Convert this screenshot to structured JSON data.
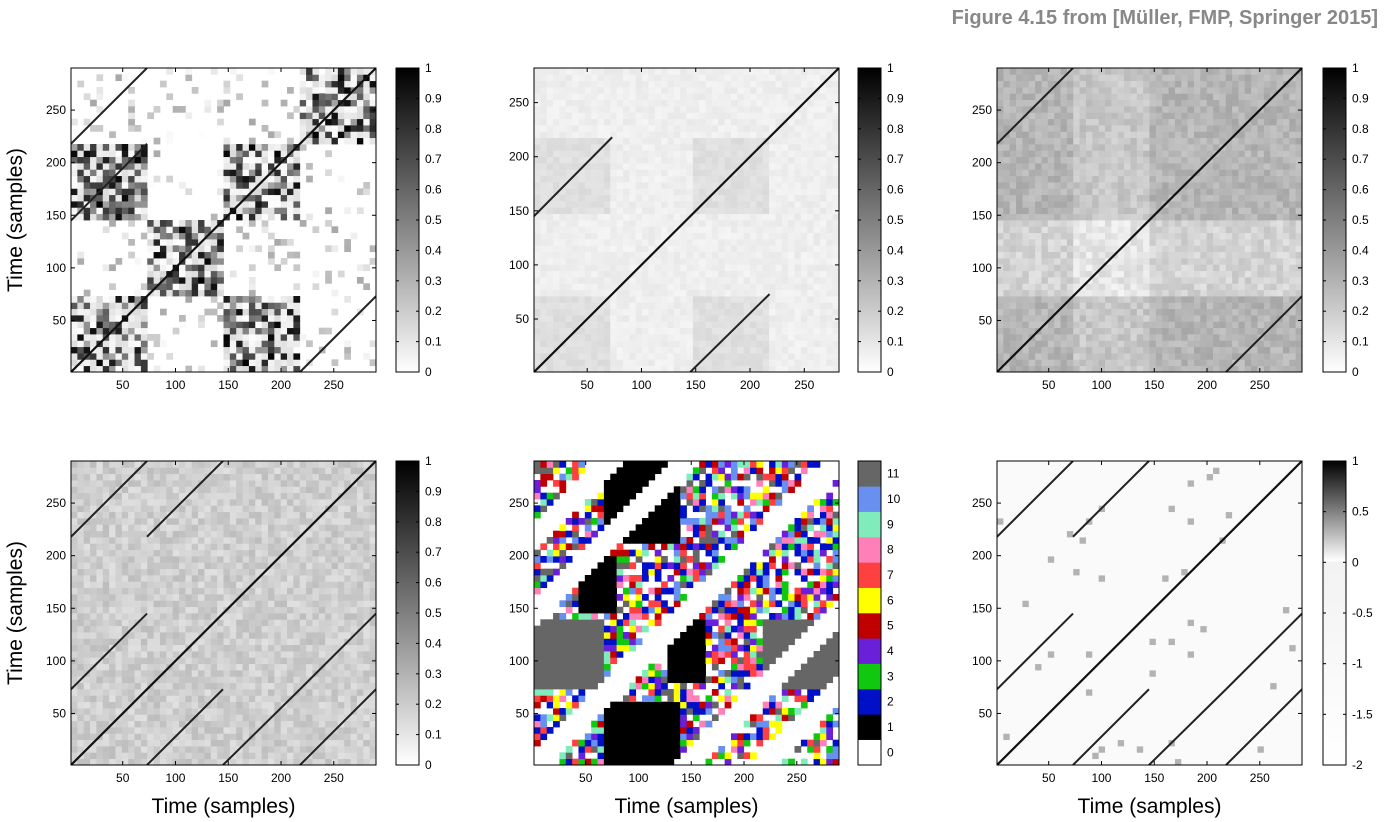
{
  "figure": {
    "caption": "Figure 4.15 from [Müller, FMP, Springer 2015]"
  },
  "axis_labels": {
    "xlabel": "Time (samples)",
    "ylabel": "Time (samples)"
  },
  "chart_data": [
    {
      "type": "heatmap",
      "title": "",
      "xlabel": "",
      "ylabel": "Time (samples)",
      "xlim": [
        1,
        290
      ],
      "ylim": [
        1,
        290
      ],
      "xticks": [
        50,
        100,
        150,
        200,
        250
      ],
      "yticks": [
        50,
        100,
        150,
        200,
        250
      ],
      "colormap": "gray-inverted",
      "colorbar": {
        "min": 0,
        "max": 1,
        "ticks": [
          "0",
          "0.1",
          "0.2",
          "0.3",
          "0.4",
          "0.5",
          "0.6",
          "0.7",
          "0.8",
          "0.9",
          "1"
        ]
      },
      "pattern": "binary-structure",
      "main_diagonal": true,
      "repetition_paths": [
        [
          1,
          73,
          145,
          218
        ],
        [
          218,
          290,
          1,
          73
        ],
        [
          1,
          73,
          218,
          290
        ]
      ],
      "homogeneous_blocks": [
        [
          1,
          73,
          1,
          73
        ],
        [
          145,
          218,
          145,
          218
        ],
        [
          1,
          73,
          145,
          218
        ],
        [
          145,
          218,
          1,
          73
        ],
        [
          73,
          145,
          73,
          145
        ],
        [
          218,
          290,
          218,
          290
        ]
      ]
    },
    {
      "type": "heatmap",
      "title": "",
      "xlabel": "",
      "ylabel": "",
      "xlim": [
        1,
        282
      ],
      "ylim": [
        1,
        282
      ],
      "xticks": [
        50,
        100,
        150,
        200,
        250
      ],
      "yticks": [
        50,
        100,
        150,
        200,
        250
      ],
      "colormap": "gray-inverted",
      "colorbar": {
        "min": 0,
        "max": 1,
        "ticks": [
          "0",
          "0.1",
          "0.2",
          "0.3",
          "0.4",
          "0.5",
          "0.6",
          "0.7",
          "0.8",
          "0.9",
          "1"
        ]
      },
      "pattern": "smoothed",
      "main_diagonal": true,
      "repetition_paths": [
        [
          1,
          73,
          145,
          218
        ],
        [
          145,
          218,
          1,
          73
        ]
      ]
    },
    {
      "type": "heatmap",
      "title": "",
      "xlabel": "",
      "ylabel": "",
      "xlim": [
        1,
        290
      ],
      "ylim": [
        1,
        290
      ],
      "xticks": [
        50,
        100,
        150,
        200,
        250
      ],
      "yticks": [
        50,
        100,
        150,
        200,
        250
      ],
      "colormap": "gray-inverted",
      "colorbar": {
        "min": 0,
        "max": 1,
        "ticks": [
          "0",
          "0.1",
          "0.2",
          "0.3",
          "0.4",
          "0.5",
          "0.6",
          "0.7",
          "0.8",
          "0.9",
          "1"
        ]
      },
      "pattern": "smoothed-strong",
      "main_diagonal": true,
      "repetition_paths": [
        [
          1,
          73,
          218,
          290
        ],
        [
          218,
          290,
          1,
          73
        ]
      ]
    },
    {
      "type": "heatmap",
      "title": "",
      "xlabel": "Time (samples)",
      "ylabel": "Time (samples)",
      "xlim": [
        1,
        290
      ],
      "ylim": [
        1,
        290
      ],
      "xticks": [
        50,
        100,
        150,
        200,
        250
      ],
      "yticks": [
        50,
        100,
        150,
        200,
        250
      ],
      "colormap": "gray-inverted",
      "colorbar": {
        "min": 0,
        "max": 1,
        "ticks": [
          "0",
          "0.1",
          "0.2",
          "0.3",
          "0.4",
          "0.5",
          "0.6",
          "0.7",
          "0.8",
          "0.9",
          "1"
        ]
      },
      "pattern": "transposition-invariant",
      "main_diagonal": true,
      "repetition_paths": [
        [
          1,
          73,
          73,
          145
        ],
        [
          73,
          145,
          1,
          73
        ],
        [
          1,
          73,
          218,
          290
        ],
        [
          73,
          145,
          218,
          290
        ],
        [
          145,
          218,
          1,
          73
        ],
        [
          218,
          290,
          1,
          73
        ],
        [
          218,
          290,
          73,
          145
        ]
      ]
    },
    {
      "type": "heatmap",
      "title": "",
      "xlabel": "Time (samples)",
      "ylabel": "",
      "xlim": [
        1,
        290
      ],
      "ylim": [
        1,
        290
      ],
      "xticks": [
        50,
        100,
        150,
        200,
        250
      ],
      "yticks": [
        50,
        100,
        150,
        200,
        250
      ],
      "colormap": "categorical",
      "colorbar": {
        "min": 0,
        "max": 11,
        "ticks": [
          "0",
          "1",
          "2",
          "3",
          "4",
          "5",
          "6",
          "7",
          "8",
          "9",
          "10",
          "11"
        ],
        "colors": [
          "#ffffff",
          "#000000",
          "#0010c8",
          "#10c810",
          "#6a20d8",
          "#c00000",
          "#ffff00",
          "#ff4040",
          "#ff80b8",
          "#80ecbc",
          "#6890f0",
          "#666666"
        ]
      },
      "pattern": "transposition-index"
    },
    {
      "type": "heatmap",
      "title": "",
      "xlabel": "Time (samples)",
      "ylabel": "",
      "xlim": [
        1,
        290
      ],
      "ylim": [
        1,
        290
      ],
      "xticks": [
        50,
        100,
        150,
        200,
        250
      ],
      "yticks": [
        50,
        100,
        150,
        200,
        250
      ],
      "colormap": "gray-inverted-thresholded",
      "colorbar": {
        "min": -2,
        "max": 1,
        "ticks": [
          "-2",
          "-1.5",
          "-1",
          "-0.5",
          "0",
          "0.5",
          "1"
        ]
      },
      "pattern": "thresholded",
      "main_diagonal": true,
      "repetition_paths": [
        [
          1,
          73,
          73,
          145
        ],
        [
          73,
          145,
          1,
          73
        ],
        [
          1,
          73,
          218,
          290
        ],
        [
          73,
          145,
          218,
          290
        ],
        [
          145,
          218,
          1,
          73
        ],
        [
          218,
          290,
          1,
          73
        ],
        [
          218,
          290,
          73,
          145
        ]
      ]
    }
  ]
}
